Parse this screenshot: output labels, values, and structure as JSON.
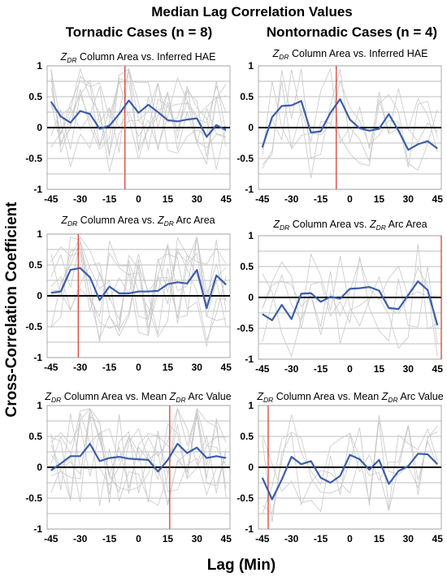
{
  "title": "Median Lag Correlation Values",
  "columns": [
    "Tornadic Cases (n = 8)",
    "Nontornadic Cases (n = 4)"
  ],
  "ylabel": "Cross-Correlation Coefficient",
  "xlabel": "Lag (Min)",
  "chart_data": [
    {
      "type": "line",
      "column": 0,
      "title_parts": [
        "Z",
        "DR",
        " Column Area vs. Inferred HAE"
      ],
      "x": [
        -45,
        -40,
        -35,
        -30,
        -25,
        -20,
        -15,
        -10,
        -5,
        0,
        5,
        10,
        15,
        20,
        25,
        30,
        35,
        40,
        45
      ],
      "series": [
        {
          "values": [
            0.42,
            0.18,
            0.08,
            0.27,
            0.22,
            -0.02,
            0.03,
            0.22,
            0.44,
            0.24,
            0.37,
            0.25,
            0.12,
            0.1,
            0.13,
            0.15,
            -0.15,
            0.04,
            -0.04
          ]
        }
      ],
      "vline": -7,
      "xticks": [
        -45,
        -30,
        -15,
        0,
        15,
        30,
        45
      ],
      "yticks": [
        -1,
        -0.5,
        0,
        0.5,
        1
      ],
      "xlim": [
        -47,
        47
      ],
      "ylim": [
        -1,
        1
      ]
    },
    {
      "type": "line",
      "column": 1,
      "title_parts": [
        "Z",
        "DR",
        " Column Area vs. Inferred HAE"
      ],
      "x": [
        -45,
        -40,
        -35,
        -30,
        -25,
        -20,
        -15,
        -10,
        -5,
        0,
        5,
        10,
        15,
        20,
        25,
        30,
        35,
        40,
        45
      ],
      "series": [
        {
          "values": [
            -0.32,
            0.17,
            0.35,
            0.36,
            0.43,
            -0.08,
            -0.06,
            0.24,
            0.46,
            0.13,
            -0.01,
            -0.05,
            -0.02,
            0.22,
            -0.05,
            -0.36,
            -0.27,
            -0.22,
            -0.34
          ]
        }
      ],
      "vline": -7,
      "xticks": [
        -45,
        -30,
        -15,
        0,
        15,
        30,
        45
      ],
      "yticks": [
        -1,
        -0.5,
        0,
        0.5,
        1
      ],
      "xlim": [
        -47,
        47
      ],
      "ylim": [
        -1,
        1
      ]
    },
    {
      "type": "line",
      "column": 0,
      "title_parts": [
        "Z",
        "DR",
        " Column Area vs. ",
        "Z",
        "DR",
        " Arc Area"
      ],
      "x": [
        -45,
        -40,
        -35,
        -30,
        -25,
        -20,
        -15,
        -10,
        -5,
        0,
        5,
        10,
        15,
        20,
        25,
        30,
        35,
        40,
        45
      ],
      "series": [
        {
          "values": [
            0.05,
            0.07,
            0.42,
            0.45,
            0.3,
            -0.07,
            0.15,
            0.04,
            0.04,
            0.07,
            0.07,
            0.08,
            0.19,
            0.22,
            0.2,
            0.42,
            -0.2,
            0.33,
            0.18
          ]
        }
      ],
      "vline": -31,
      "xticks": [
        -45,
        -30,
        -15,
        0,
        15,
        30,
        45
      ],
      "yticks": [
        -1,
        -0.5,
        0,
        0.5,
        1
      ],
      "xlim": [
        -47,
        47
      ],
      "ylim": [
        -1,
        1
      ]
    },
    {
      "type": "line",
      "column": 1,
      "title_parts": [
        "Z",
        "DR",
        " Column Area vs. ",
        "Z",
        "DR",
        " Arc Area"
      ],
      "x": [
        -45,
        -40,
        -35,
        -30,
        -25,
        -20,
        -15,
        -10,
        -5,
        0,
        5,
        10,
        15,
        20,
        25,
        30,
        35,
        40,
        45
      ],
      "series": [
        {
          "values": [
            -0.27,
            -0.37,
            -0.12,
            -0.35,
            0.06,
            0.07,
            -0.07,
            0.01,
            -0.02,
            0.14,
            0.15,
            0.17,
            0.11,
            -0.17,
            -0.19,
            0.04,
            0.26,
            0.12,
            -0.45
          ]
        }
      ],
      "vline": 47,
      "xticks": [
        -45,
        -30,
        -15,
        0,
        15,
        30,
        45
      ],
      "yticks": [
        -1,
        -0.5,
        0,
        0.5,
        1
      ],
      "xlim": [
        -47,
        47
      ],
      "ylim": [
        -1,
        1
      ]
    },
    {
      "type": "line",
      "column": 0,
      "title_parts": [
        "Z",
        "DR",
        " Column Area vs. Mean ",
        "Z",
        "DR",
        " Arc Value"
      ],
      "x": [
        -45,
        -40,
        -35,
        -30,
        -25,
        -20,
        -15,
        -10,
        -5,
        0,
        5,
        10,
        15,
        20,
        25,
        30,
        35,
        40,
        45
      ],
      "series": [
        {
          "values": [
            -0.05,
            0.06,
            0.18,
            0.18,
            0.38,
            0.1,
            0.15,
            0.17,
            0.14,
            0.13,
            0.12,
            -0.07,
            0.12,
            0.38,
            0.23,
            0.32,
            0.15,
            0.18,
            0.15
          ]
        }
      ],
      "vline": 16,
      "xticks": [
        -45,
        -30,
        -15,
        0,
        15,
        30,
        45
      ],
      "yticks": [
        -1,
        -0.5,
        0,
        0.5,
        1
      ],
      "xlim": [
        -47,
        47
      ],
      "ylim": [
        -1,
        1
      ]
    },
    {
      "type": "line",
      "column": 1,
      "title_parts": [
        "Z",
        "DR",
        " Column Area vs. Mean ",
        "Z",
        "DR",
        " Arc Value"
      ],
      "x": [
        -45,
        -40,
        -35,
        -30,
        -25,
        -20,
        -15,
        -10,
        -5,
        0,
        5,
        10,
        15,
        20,
        25,
        30,
        35,
        40,
        45
      ],
      "series": [
        {
          "values": [
            -0.17,
            -0.52,
            -0.2,
            0.17,
            0.05,
            0.1,
            -0.17,
            -0.25,
            -0.14,
            0.2,
            0.13,
            -0.04,
            0.12,
            -0.27,
            -0.06,
            0.02,
            0.22,
            0.21,
            0.05
          ]
        }
      ],
      "vline": -42,
      "xticks": [
        -45,
        -30,
        -15,
        0,
        15,
        30,
        45
      ],
      "yticks": [
        -1,
        -0.5,
        0,
        0.5,
        1
      ],
      "xlim": [
        -47,
        47
      ],
      "ylim": [
        -1,
        1
      ]
    }
  ],
  "colors": {
    "median_line": "#3b5eab",
    "grey_lines": "#c8c8c8",
    "vline": "#d94133",
    "grid": "#a8a8a8",
    "zero_line": "#000000"
  }
}
